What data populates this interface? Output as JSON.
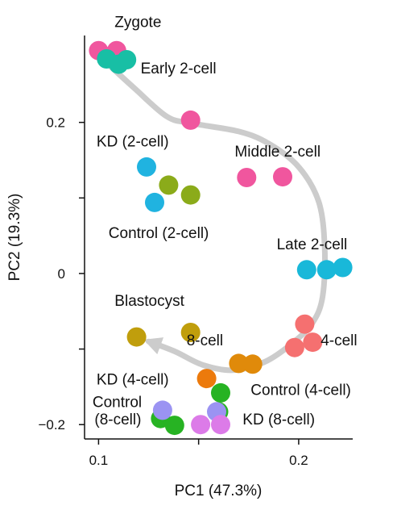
{
  "chart_data": {
    "type": "scatter",
    "xlabel": "PC1 (47.3%)",
    "ylabel": "PC2 (19.3%)",
    "xlim": [
      0.093,
      0.227
    ],
    "ylim": [
      -0.219,
      0.315
    ],
    "x_ticks": [
      {
        "value": 0.1,
        "label": "0.1"
      },
      {
        "value": 0.15,
        "label": ""
      },
      {
        "value": 0.2,
        "label": "0.2"
      }
    ],
    "y_ticks": [
      {
        "value": 0.2,
        "label": "0.2"
      },
      {
        "value": 0.1,
        "label": ""
      },
      {
        "value": 0,
        "label": "0"
      },
      {
        "value": -0.1,
        "label": ""
      },
      {
        "value": -0.2,
        "label": "−0.2"
      }
    ],
    "grid": false,
    "legend": "none",
    "trajectory": {
      "color": "#cccccc",
      "points": [
        [
          0.104,
          0.279
        ],
        [
          0.118,
          0.245
        ],
        [
          0.134,
          0.208
        ],
        [
          0.146,
          0.199
        ],
        [
          0.17,
          0.188
        ],
        [
          0.185,
          0.172
        ],
        [
          0.2,
          0.141
        ],
        [
          0.21,
          0.095
        ],
        [
          0.213,
          0.035
        ],
        [
          0.212,
          -0.03
        ],
        [
          0.207,
          -0.065
        ],
        [
          0.197,
          -0.092
        ],
        [
          0.183,
          -0.117
        ],
        [
          0.167,
          -0.128
        ],
        [
          0.152,
          -0.121
        ],
        [
          0.138,
          -0.103
        ],
        [
          0.125,
          -0.09
        ]
      ]
    },
    "series": [
      {
        "color": "#f0569e",
        "points": [
          [
            0.1,
            0.295
          ],
          [
            0.109,
            0.295
          ],
          [
            0.146,
            0.203
          ],
          [
            0.174,
            0.127
          ],
          [
            0.192,
            0.128
          ]
        ]
      },
      {
        "color": "#18bfa5",
        "points": [
          [
            0.104,
            0.284
          ],
          [
            0.11,
            0.277
          ],
          [
            0.114,
            0.283
          ]
        ]
      },
      {
        "color": "#20b3e0",
        "points": [
          [
            0.124,
            0.141
          ],
          [
            0.128,
            0.094
          ]
        ]
      },
      {
        "color": "#8bab1a",
        "points": [
          [
            0.135,
            0.117
          ],
          [
            0.146,
            0.104
          ]
        ]
      },
      {
        "color": "#19b8d9",
        "points": [
          [
            0.204,
            0.005
          ],
          [
            0.214,
            0.005
          ],
          [
            0.222,
            0.008
          ]
        ]
      },
      {
        "color": "#c09e0c",
        "points": [
          [
            0.119,
            -0.084
          ],
          [
            0.146,
            -0.078
          ]
        ]
      },
      {
        "color": "#f57070",
        "points": [
          [
            0.203,
            -0.067
          ],
          [
            0.207,
            -0.091
          ],
          [
            0.198,
            -0.098
          ]
        ]
      },
      {
        "color": "#e08a0a",
        "points": [
          [
            0.17,
            -0.119
          ],
          [
            0.177,
            -0.12
          ]
        ]
      },
      {
        "color": "#ec7a0c",
        "points": [
          [
            0.154,
            -0.139
          ]
        ]
      },
      {
        "color": "#27b323",
        "points": [
          [
            0.161,
            -0.158
          ],
          [
            0.16,
            -0.183
          ],
          [
            0.131,
            -0.192
          ],
          [
            0.138,
            -0.201
          ]
        ]
      },
      {
        "color": "#9b93f2",
        "points": [
          [
            0.132,
            -0.181
          ],
          [
            0.159,
            -0.183
          ]
        ]
      },
      {
        "color": "#dc7be8",
        "points": [
          [
            0.151,
            -0.2
          ],
          [
            0.161,
            -0.2
          ]
        ]
      }
    ],
    "annotations": [
      {
        "text": "Zygote",
        "x": 0.108,
        "y": 0.326,
        "anchor": "start"
      },
      {
        "text": "Early 2-cell",
        "x": 0.121,
        "y": 0.265,
        "anchor": "start"
      },
      {
        "text": "KD (2-cell)",
        "x": 0.099,
        "y": 0.168,
        "anchor": "start"
      },
      {
        "text": "Middle 2-cell",
        "x": 0.168,
        "y": 0.155,
        "anchor": "start"
      },
      {
        "text": "Control (2-cell)",
        "x": 0.105,
        "y": 0.047,
        "anchor": "start"
      },
      {
        "text": "Late 2-cell",
        "x": 0.189,
        "y": 0.032,
        "anchor": "start"
      },
      {
        "text": "Blastocyst",
        "x": 0.108,
        "y": -0.043,
        "anchor": "start"
      },
      {
        "text": "8-cell",
        "x": 0.144,
        "y": -0.095,
        "anchor": "start"
      },
      {
        "text": "4-cell",
        "x": 0.211,
        "y": -0.095,
        "anchor": "start"
      },
      {
        "text": "KD (4-cell)",
        "x": 0.099,
        "y": -0.147,
        "anchor": "start"
      },
      {
        "text": "Control (4-cell)",
        "x": 0.176,
        "y": -0.161,
        "anchor": "start"
      },
      {
        "text": "Control",
        "x": 0.097,
        "y": -0.177,
        "anchor": "start"
      },
      {
        "text": "(8-cell)",
        "x": 0.098,
        "y": -0.2,
        "anchor": "start"
      },
      {
        "text": "KD (8-cell)",
        "x": 0.172,
        "y": -0.2,
        "anchor": "start"
      }
    ]
  }
}
